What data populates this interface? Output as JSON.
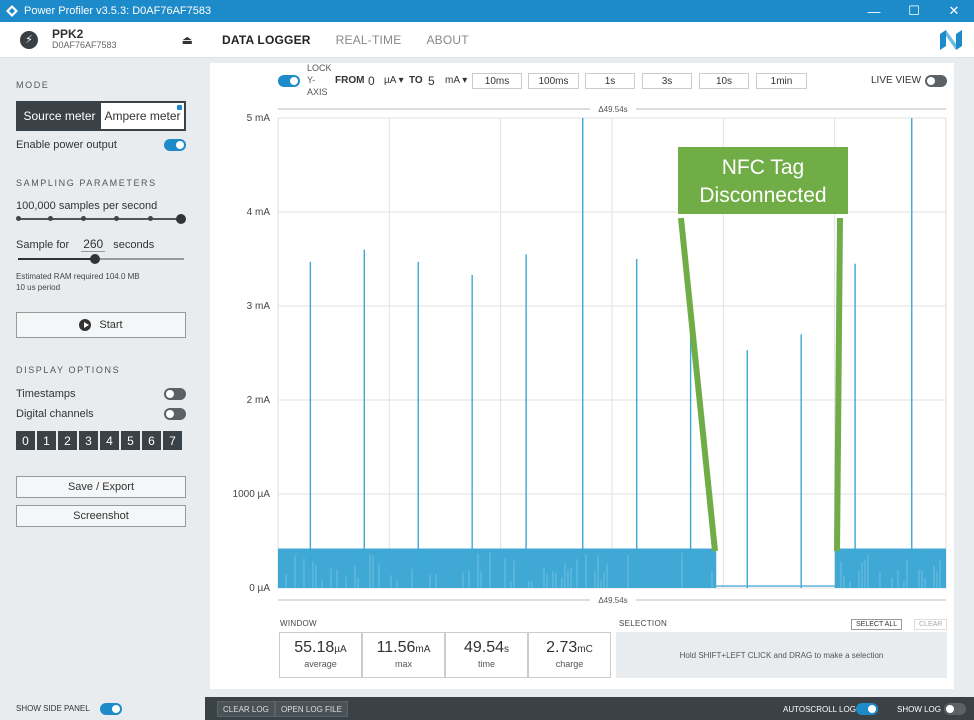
{
  "window": {
    "title": "Power Profiler v3.5.3: D0AF76AF7583",
    "minimize": "—",
    "maximize": "☐",
    "close": "✕"
  },
  "device": {
    "name": "PPK2",
    "serial": "D0AF76AF7583"
  },
  "nav": {
    "tabs": [
      "DATA LOGGER",
      "REAL-TIME",
      "ABOUT"
    ]
  },
  "sidebar": {
    "mode_title": "MODE",
    "mode_options": [
      "Source meter",
      "Ampere meter"
    ],
    "enable_power": "Enable power output",
    "sampling_title": "SAMPLING PARAMETERS",
    "samples_rate": "100,000 samples per second",
    "sample_for_label": "Sample for",
    "sample_for_value": "260",
    "sample_for_unit": "seconds",
    "ram": "Estimated RAM required 104.0 MB",
    "period": "10 us period",
    "start": "Start",
    "display_title": "DISPLAY OPTIONS",
    "timestamps": "Timestamps",
    "digital_channels": "Digital channels",
    "channels": [
      "0",
      "1",
      "2",
      "3",
      "4",
      "5",
      "6",
      "7"
    ],
    "save_export": "Save / Export",
    "screenshot": "Screenshot"
  },
  "toolbar": {
    "lock_line1": "LOCK",
    "lock_line2": "Y-",
    "lock_line3": "AXIS",
    "from_label": "FROM",
    "from_value": "0",
    "from_unit": "µA",
    "to_label": "TO",
    "to_value": "5",
    "to_unit": "mA",
    "windows": [
      "10ms",
      "100ms",
      "1s",
      "3s",
      "10s",
      "1min"
    ],
    "live_view": "LIVE VIEW"
  },
  "chart_data": {
    "type": "line",
    "title": "",
    "xlabel": "",
    "ylabel": "",
    "duration_label": "Δ49.54s",
    "y_ticks": [
      "5 mA",
      "4 mA",
      "3 mA",
      "2 mA",
      "1000 µA",
      "0 µA"
    ],
    "ylim": [
      0,
      5
    ],
    "xlim": [
      0,
      49.54
    ],
    "baseline_mA": 0.42,
    "spikes": [
      {
        "t": 2.4,
        "mA": 3.47
      },
      {
        "t": 6.4,
        "mA": 3.6
      },
      {
        "t": 10.4,
        "mA": 3.47
      },
      {
        "t": 14.4,
        "mA": 3.33
      },
      {
        "t": 18.4,
        "mA": 3.55
      },
      {
        "t": 22.6,
        "mA": 5.0
      },
      {
        "t": 26.6,
        "mA": 3.5
      },
      {
        "t": 30.6,
        "mA": 2.67
      },
      {
        "t": 34.8,
        "mA": 2.53
      },
      {
        "t": 38.8,
        "mA": 2.7
      },
      {
        "t": 42.8,
        "mA": 3.45
      },
      {
        "t": 47.0,
        "mA": 5.0
      }
    ],
    "gap": {
      "start": 32.5,
      "end": 41.3
    },
    "annotation": {
      "line1": "NFC Tag",
      "line2": "Disconnected",
      "color": "#70ad47"
    },
    "series_color": "#3fa8d4"
  },
  "window_stats": {
    "title": "WINDOW",
    "items": [
      {
        "value": "55.18",
        "unit": "µA",
        "label": "average"
      },
      {
        "value": "11.56",
        "unit": "mA",
        "label": "max"
      },
      {
        "value": "49.54",
        "unit": "s",
        "label": "time"
      },
      {
        "value": "2.73",
        "unit": "mC",
        "label": "charge"
      }
    ]
  },
  "selection": {
    "title": "SELECTION",
    "select_all": "SELECT ALL",
    "clear": "CLEAR",
    "hint": "Hold SHIFT+LEFT CLICK and DRAG to make a selection"
  },
  "footer": {
    "show_side_panel": "SHOW SIDE PANEL",
    "clear_log": "CLEAR LOG",
    "open_log_file": "OPEN LOG FILE",
    "autoscroll_log": "AUTOSCROLL LOG",
    "show_log": "SHOW LOG"
  },
  "colors": {
    "accent": "#1d8ac9",
    "dark": "#3a4147"
  }
}
